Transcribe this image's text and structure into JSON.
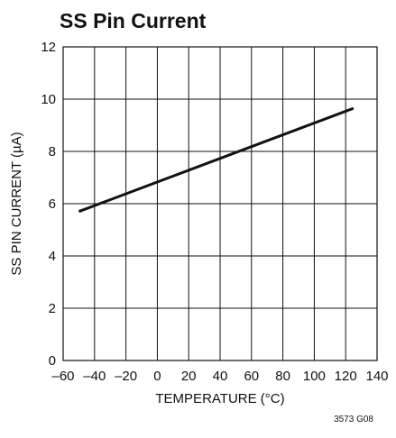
{
  "chart_data": {
    "type": "line",
    "title": "SS Pin Current",
    "xlabel": "TEMPERATURE (°C)",
    "ylabel": "SS PIN CURRENT (µA)",
    "xlim": [
      -60,
      140
    ],
    "ylim": [
      0,
      12
    ],
    "x_ticks": [
      -60,
      -40,
      -20,
      0,
      20,
      40,
      60,
      80,
      100,
      120,
      140
    ],
    "y_ticks": [
      0,
      2,
      4,
      6,
      8,
      10,
      12
    ],
    "x_tick_labels": [
      "–60",
      "–40",
      "–20",
      "0",
      "20",
      "40",
      "60",
      "80",
      "100",
      "120",
      "140"
    ],
    "y_tick_labels": [
      "0",
      "2",
      "4",
      "6",
      "8",
      "10",
      "12"
    ],
    "grid": true,
    "series": [
      {
        "x": [
          -50,
          125
        ],
        "y": [
          5.7,
          9.65
        ],
        "color": "#111111"
      }
    ],
    "annotation": "3573 G08"
  }
}
